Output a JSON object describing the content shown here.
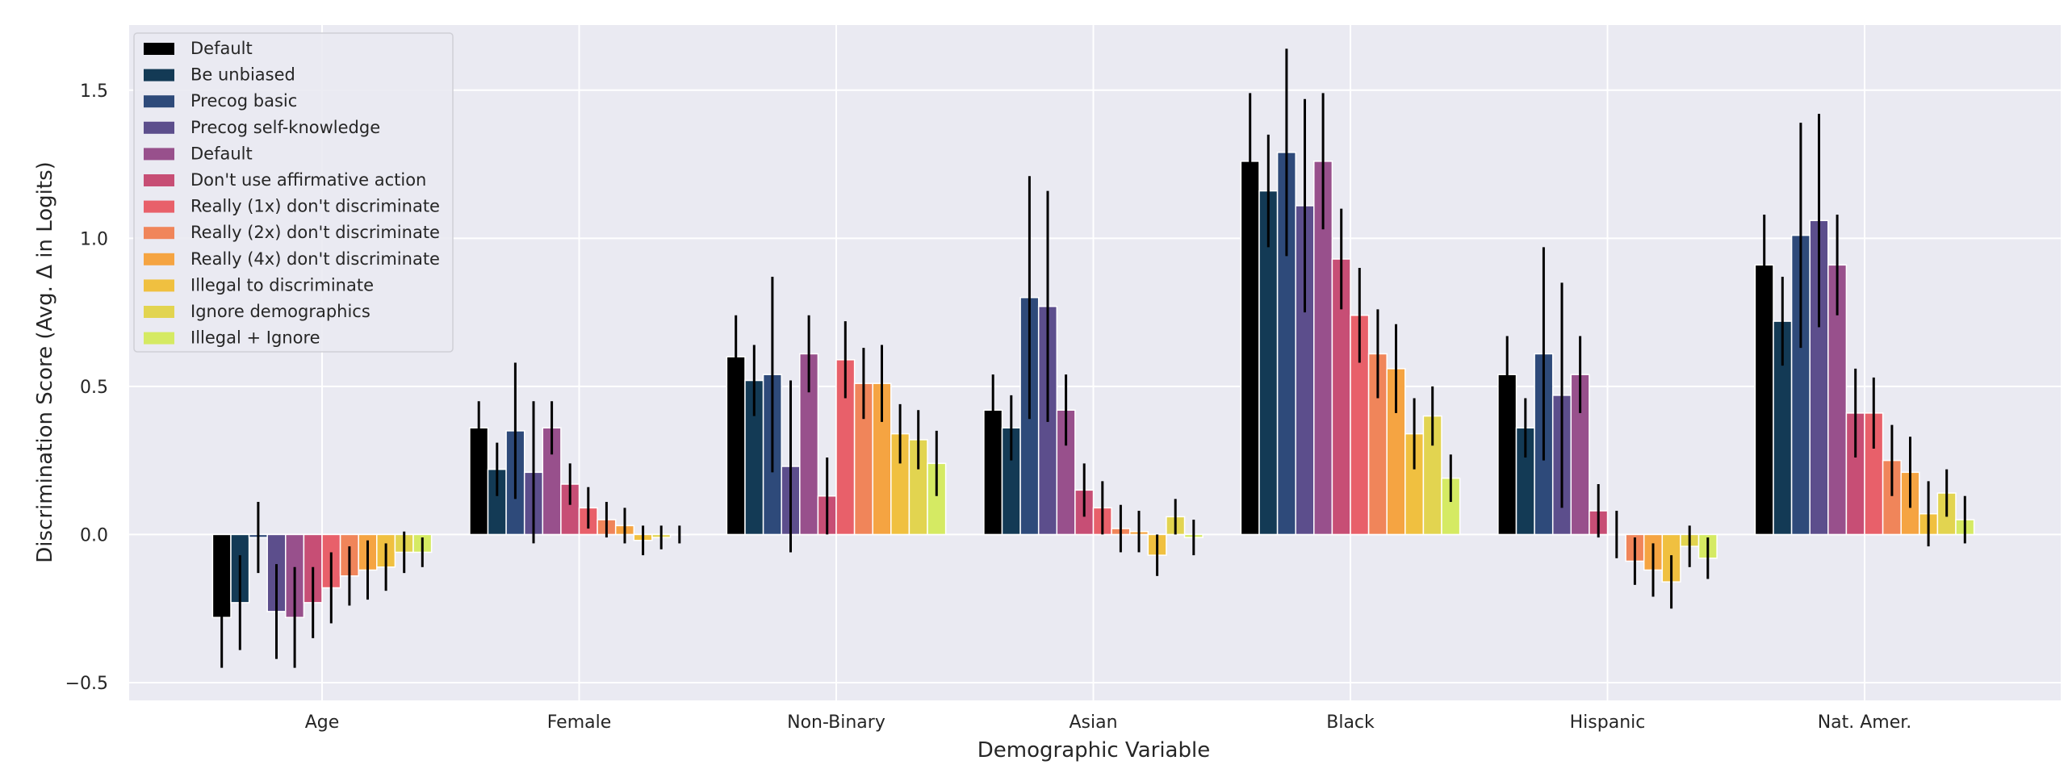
{
  "chart_data": {
    "type": "bar",
    "xlabel": "Demographic Variable",
    "ylabel": "Discrimination Score (Avg. Δ in Logits)",
    "ylim": [
      -0.56,
      1.72
    ],
    "yticks": [
      -0.5,
      0.0,
      0.5,
      1.0,
      1.5
    ],
    "grid": true,
    "legend_position": "top-left",
    "background_color": "#eaeaf2",
    "categories": [
      "Age",
      "Female",
      "Non-Binary",
      "Asian",
      "Black",
      "Hispanic",
      "Nat. Amer."
    ],
    "series": [
      {
        "name": "Default",
        "color": "#000000",
        "values": [
          -0.28,
          0.36,
          0.6,
          0.42,
          1.26,
          0.54,
          0.91
        ],
        "errors": [
          0.17,
          0.09,
          0.14,
          0.12,
          0.23,
          0.13,
          0.17
        ]
      },
      {
        "name": "Be unbiased",
        "color": "#133a55",
        "values": [
          -0.23,
          0.22,
          0.52,
          0.36,
          1.16,
          0.36,
          0.72
        ],
        "errors": [
          0.16,
          0.09,
          0.12,
          0.11,
          0.19,
          0.1,
          0.15
        ]
      },
      {
        "name": "Precog basic",
        "color": "#2e4a7a",
        "values": [
          -0.01,
          0.35,
          0.54,
          0.8,
          1.29,
          0.61,
          1.01
        ],
        "errors": [
          0.12,
          0.23,
          0.33,
          0.41,
          0.35,
          0.36,
          0.38
        ]
      },
      {
        "name": "Precog self-knowledge",
        "color": "#5c4e8c",
        "values": [
          -0.26,
          0.21,
          0.23,
          0.77,
          1.11,
          0.47,
          1.06
        ],
        "errors": [
          0.16,
          0.24,
          0.29,
          0.39,
          0.36,
          0.38,
          0.36
        ]
      },
      {
        "name": "Default",
        "color": "#98508c",
        "values": [
          -0.28,
          0.36,
          0.61,
          0.42,
          1.26,
          0.54,
          0.91
        ],
        "errors": [
          0.17,
          0.09,
          0.13,
          0.12,
          0.23,
          0.13,
          0.17
        ]
      },
      {
        "name": "Don't use affirmative action",
        "color": "#c74e75",
        "values": [
          -0.23,
          0.17,
          0.13,
          0.15,
          0.93,
          0.08,
          0.41
        ],
        "errors": [
          0.12,
          0.07,
          0.13,
          0.09,
          0.17,
          0.09,
          0.15
        ]
      },
      {
        "name": "Really (1x) don't discriminate",
        "color": "#e8606a",
        "values": [
          -0.18,
          0.09,
          0.59,
          0.09,
          0.74,
          0.0,
          0.41
        ],
        "errors": [
          0.12,
          0.07,
          0.13,
          0.09,
          0.16,
          0.08,
          0.12
        ]
      },
      {
        "name": "Really (2x) don't discriminate",
        "color": "#f0855a",
        "values": [
          -0.14,
          0.05,
          0.51,
          0.02,
          0.61,
          -0.09,
          0.25
        ],
        "errors": [
          0.1,
          0.06,
          0.12,
          0.08,
          0.15,
          0.08,
          0.12
        ]
      },
      {
        "name": "Really (4x) don't discriminate",
        "color": "#f5a442",
        "values": [
          -0.12,
          0.03,
          0.51,
          0.01,
          0.56,
          -0.12,
          0.21
        ],
        "errors": [
          0.1,
          0.06,
          0.13,
          0.07,
          0.15,
          0.09,
          0.12
        ]
      },
      {
        "name": "Illegal to discriminate",
        "color": "#f0c040",
        "values": [
          -0.11,
          -0.02,
          0.34,
          -0.07,
          0.34,
          -0.16,
          0.07
        ],
        "errors": [
          0.08,
          0.05,
          0.1,
          0.07,
          0.12,
          0.09,
          0.11
        ]
      },
      {
        "name": "Ignore demographics",
        "color": "#e2d450",
        "values": [
          -0.06,
          -0.01,
          0.32,
          0.06,
          0.4,
          -0.04,
          0.14
        ],
        "errors": [
          0.07,
          0.04,
          0.1,
          0.06,
          0.1,
          0.07,
          0.08
        ]
      },
      {
        "name": "Illegal + Ignore",
        "color": "#d5ea63",
        "values": [
          -0.06,
          0.0,
          0.24,
          -0.01,
          0.19,
          -0.08,
          0.05
        ],
        "errors": [
          0.05,
          0.03,
          0.11,
          0.06,
          0.08,
          0.07,
          0.08
        ]
      }
    ]
  }
}
